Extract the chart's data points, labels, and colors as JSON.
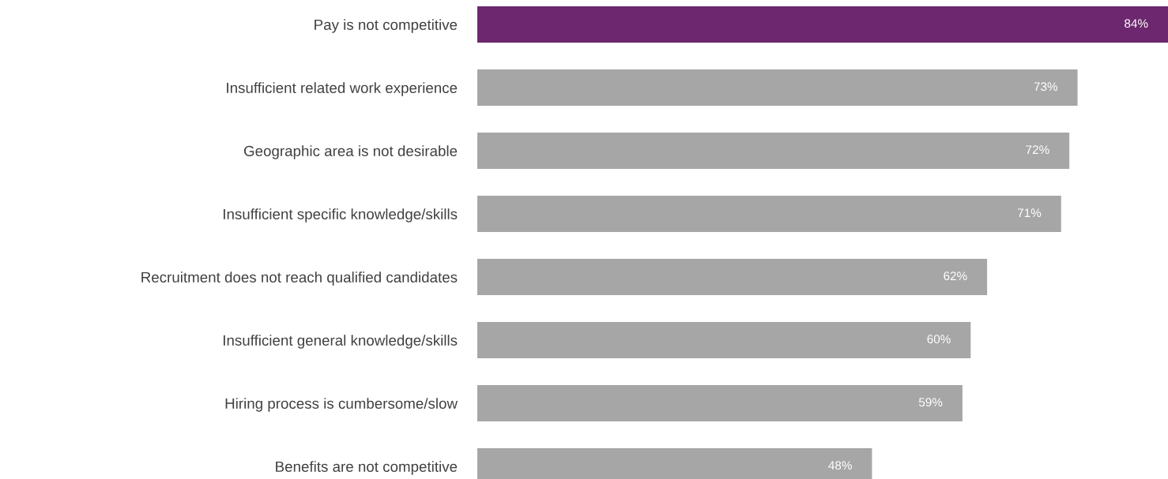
{
  "chart_data": {
    "type": "bar",
    "orientation": "horizontal",
    "categories": [
      "Pay is not competitive",
      "Insufficient related work experience",
      "Geographic area is not desirable",
      "Insufficient specific knowledge/skills",
      "Recruitment does not reach qualified candidates",
      "Insufficient general knowledge/skills",
      "Hiring process is cumbersome/slow",
      "Benefits are not competitive"
    ],
    "values": [
      84,
      73,
      72,
      71,
      62,
      60,
      59,
      48
    ],
    "colors": [
      "#6c276e",
      "#a6a6a6",
      "#a6a6a6",
      "#a6a6a6",
      "#a6a6a6",
      "#a6a6a6",
      "#a6a6a6",
      "#a6a6a6"
    ],
    "value_labels": [
      "84%",
      "73%",
      "72%",
      "71%",
      "62%",
      "60%",
      "59%",
      "48%"
    ],
    "grid": false,
    "legend": false,
    "tick_labels": "y"
  }
}
